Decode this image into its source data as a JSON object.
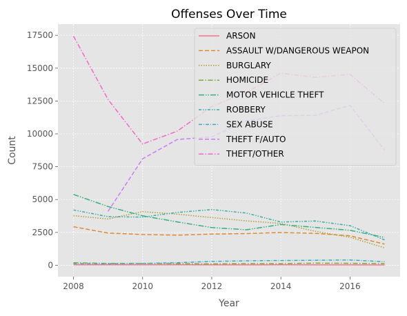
{
  "chart_data": {
    "type": "line",
    "title": "Offenses Over Time",
    "xlabel": "Year",
    "ylabel": "Count",
    "xlim": [
      2007.55,
      2017.45
    ],
    "ylim": [
      -870,
      18350
    ],
    "xticks": [
      2008,
      2010,
      2012,
      2014,
      2016
    ],
    "yticks": [
      0,
      2500,
      5000,
      7500,
      10000,
      12500,
      15000,
      17500
    ],
    "grid": true,
    "legend_position": "top-right",
    "x": [
      2008,
      2009,
      2010,
      2011,
      2012,
      2013,
      2014,
      2015,
      2016,
      2017
    ],
    "series": [
      {
        "name": "ARSON",
        "color": "#f77189",
        "dash": "solid",
        "values": [
          40,
          35,
          40,
          35,
          30,
          30,
          35,
          30,
          30,
          25
        ]
      },
      {
        "name": "ASSAULT W/DANGEROUS WEAPON",
        "color": "#dc8932",
        "dash": "dashed",
        "values": [
          2930,
          2450,
          2340,
          2290,
          2370,
          2410,
          2490,
          2430,
          2240,
          1610
        ]
      },
      {
        "name": "BURGLARY",
        "color": "#ae9d31",
        "dash": "dotted",
        "values": [
          3770,
          3520,
          4080,
          3890,
          3630,
          3380,
          3180,
          2580,
          2130,
          1330
        ]
      },
      {
        "name": "HOMICIDE",
        "color": "#77ab31",
        "dash": "dashdot",
        "values": [
          190,
          140,
          140,
          120,
          100,
          120,
          120,
          160,
          150,
          120
        ]
      },
      {
        "name": "MOTOR VEHICLE THEFT",
        "color": "#33b07a",
        "dash": "dashdotdot",
        "values": [
          5390,
          4470,
          3760,
          3300,
          2870,
          2700,
          3100,
          2880,
          2660,
          2120
        ]
      },
      {
        "name": "ROBBERY",
        "color": "#36ada4",
        "dash": "longdashdot",
        "values": [
          4210,
          3700,
          3660,
          4020,
          4240,
          3970,
          3290,
          3370,
          3010,
          1930
        ]
      },
      {
        "name": "SEX ABUSE",
        "color": "#38a9c5",
        "dash": "dashdot2",
        "values": [
          130,
          110,
          140,
          190,
          290,
          340,
          360,
          380,
          400,
          270
        ]
      },
      {
        "name": "THEFT F/AUTO",
        "color": "#cc7af4",
        "dash": "dashed",
        "values": [
          null,
          4100,
          8100,
          9570,
          9770,
          11000,
          11380,
          11400,
          12170,
          8750
        ]
      },
      {
        "name": "THEFT/OTHER",
        "color": "#f565cc",
        "dash": "dashdot",
        "values": [
          17440,
          12620,
          9230,
          10200,
          12080,
          13150,
          14620,
          14300,
          14530,
          12300
        ]
      }
    ]
  }
}
